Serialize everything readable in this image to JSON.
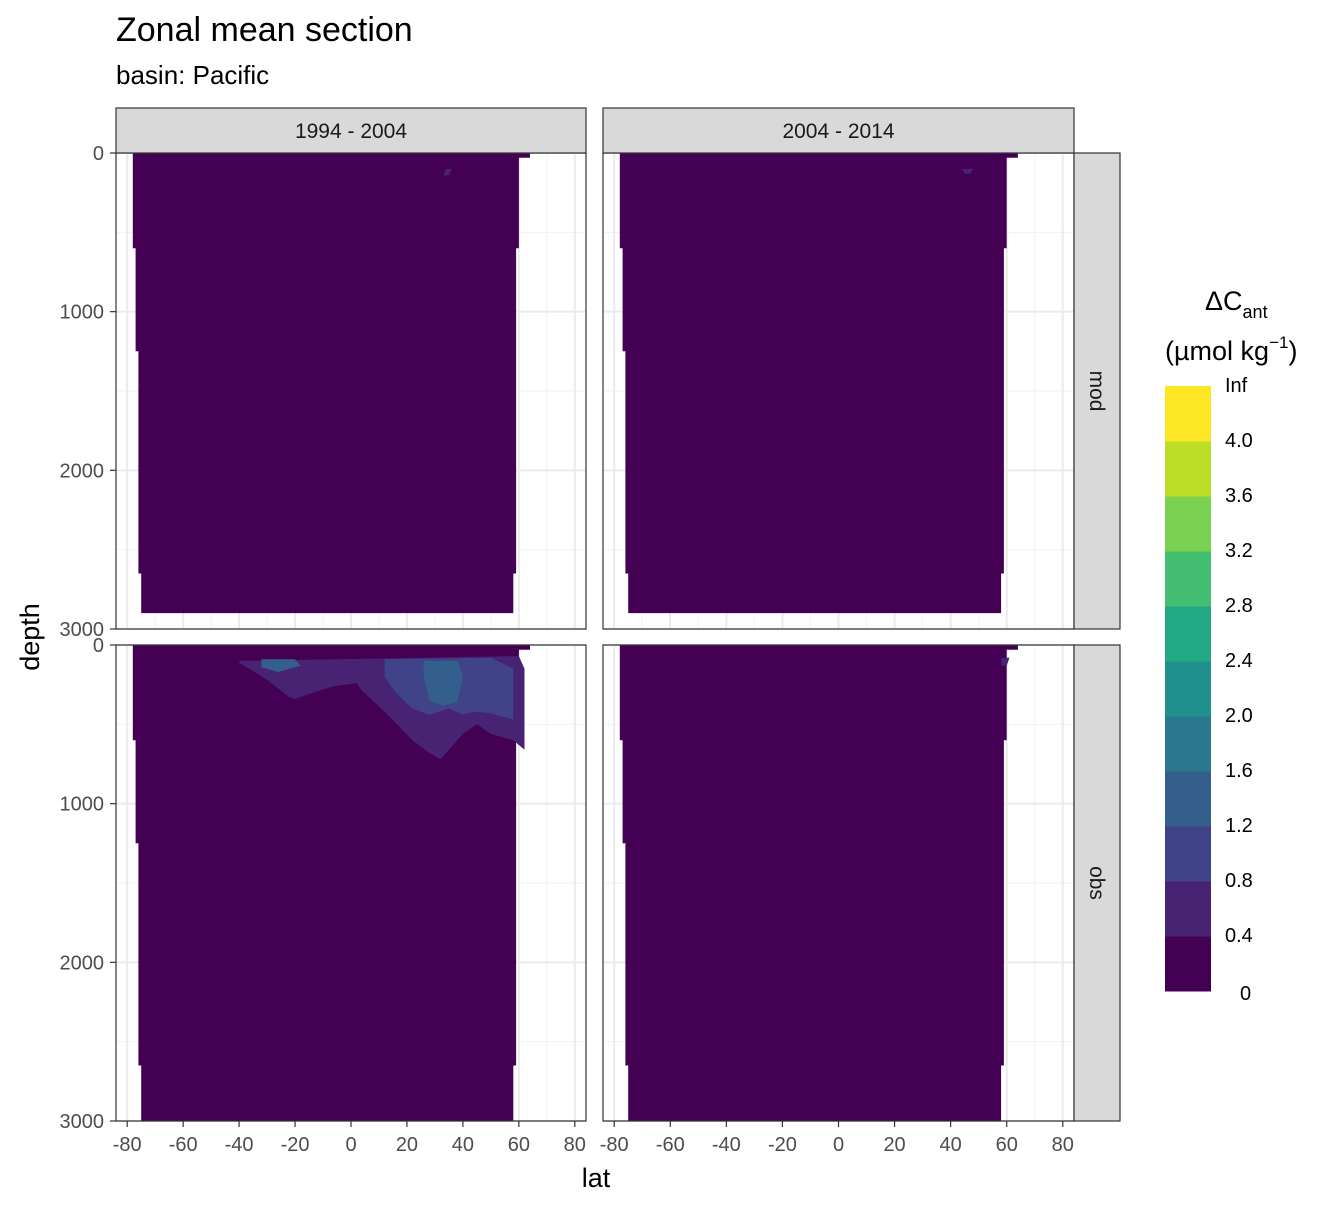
{
  "chart_data": {
    "type": "heatmap",
    "title": "Zonal mean section",
    "subtitle": "basin: Pacific",
    "xlabel": "lat",
    "ylabel": "depth",
    "xlim": [
      -84,
      84
    ],
    "ylim": [
      3000,
      0
    ],
    "x_ticks": [
      -80,
      -60,
      -40,
      -20,
      0,
      20,
      40,
      60,
      80
    ],
    "y_ticks": [
      0,
      1000,
      2000,
      3000
    ],
    "columns": [
      "1994 - 2004",
      "2004 - 2014"
    ],
    "rows": [
      "mod",
      "obs"
    ],
    "grid": true,
    "legend": {
      "title_main": "ΔC",
      "title_sub": "ant",
      "title_unit_pre": "(µmol kg",
      "title_unit_sup": "−1",
      "title_unit_post": ")",
      "position": "right",
      "bins": [
        {
          "label": "0",
          "color": "#440154"
        },
        {
          "label": "0.4",
          "color": "#482374"
        },
        {
          "label": "0.8",
          "color": "#404387"
        },
        {
          "label": "1.2",
          "color": "#345F8D"
        },
        {
          "label": "1.6",
          "color": "#29788E"
        },
        {
          "label": "2.0",
          "color": "#20908C"
        },
        {
          "label": "2.4",
          "color": "#22A884"
        },
        {
          "label": "2.8",
          "color": "#43BE71"
        },
        {
          "label": "3.2",
          "color": "#7BD151"
        },
        {
          "label": "3.6",
          "color": "#BCDE26"
        },
        {
          "label": "4.0",
          "color": "#FDE725"
        },
        {
          "label": "Inf",
          "color": null
        }
      ]
    },
    "panels": [
      {
        "column": "1994 - 2004",
        "row": "mod",
        "coverage": {
          "lat_min": -78,
          "lat_max": 64,
          "depth_max": 2900
        },
        "fill_color": "#440154",
        "patches": [
          {
            "color": "#482374",
            "lat": [
              34,
              36,
              35,
              33
            ],
            "depth": [
              100,
              100,
              140,
              140
            ]
          }
        ]
      },
      {
        "column": "2004 - 2014",
        "row": "mod",
        "coverage": {
          "lat_min": -78,
          "lat_max": 64,
          "depth_max": 2900
        },
        "fill_color": "#440154",
        "patches": [
          {
            "color": "#482374",
            "lat": [
              44,
              48,
              47,
              45
            ],
            "depth": [
              100,
              100,
              130,
              130
            ]
          }
        ]
      },
      {
        "column": "1994 - 2004",
        "row": "obs",
        "coverage": {
          "lat_min": -78,
          "lat_max": 64,
          "depth_max": 3000
        },
        "fill_color": "#440154",
        "patches": [
          {
            "color": "#482374",
            "lat": [
              -40,
              60,
              62,
              62,
              58,
              50,
              45,
              40,
              32,
              28,
              22,
              12,
              4,
              2,
              -6,
              -10,
              -20,
              -22,
              -30,
              -40
            ],
            "depth": [
              100,
              70,
              150,
              660,
              600,
              560,
              500,
              560,
              720,
              680,
              600,
              420,
              290,
              240,
              260,
              280,
              340,
              330,
              220,
              110
            ]
          },
          {
            "color": "#404387",
            "lat": [
              12,
              50,
              58,
              58,
              50,
              44,
              40,
              35,
              28,
              22,
              16,
              12
            ],
            "depth": [
              90,
              80,
              150,
              470,
              430,
              420,
              440,
              400,
              440,
              400,
              300,
              200
            ]
          },
          {
            "color": "#345F8D",
            "lat": [
              26,
              38,
              40,
              38,
              33,
              28,
              26
            ],
            "depth": [
              100,
              100,
              200,
              360,
              380,
              350,
              200
            ]
          },
          {
            "color": "#345F8D",
            "lat": [
              -32,
              -20,
              -18,
              -26,
              -32
            ],
            "depth": [
              90,
              90,
              130,
              170,
              140
            ]
          }
        ]
      },
      {
        "column": "2004 - 2014",
        "row": "obs",
        "coverage": {
          "lat_min": -78,
          "lat_max": 64,
          "depth_max": 3000
        },
        "fill_color": "#440154",
        "patches": [
          {
            "color": "#482374",
            "lat": [
              58,
              61,
              60,
              58
            ],
            "depth": [
              80,
              80,
              130,
              130
            ]
          }
        ]
      }
    ]
  }
}
